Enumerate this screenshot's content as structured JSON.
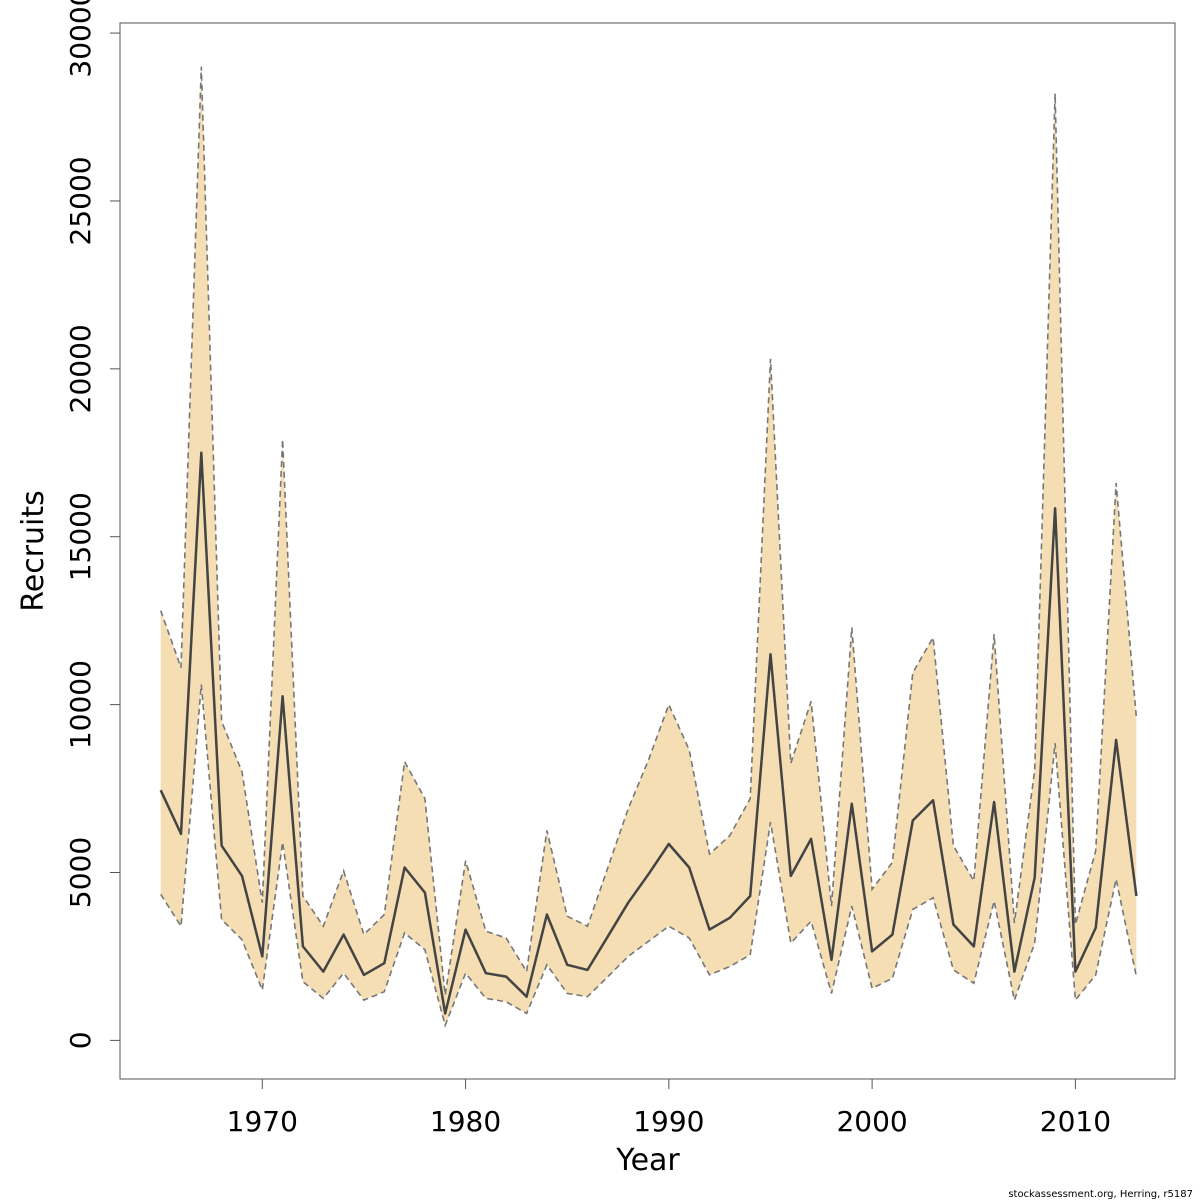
{
  "chart_data": {
    "type": "area",
    "xlabel": "Year",
    "ylabel": "Recruits",
    "xlim": [
      1963.0,
      2014.9
    ],
    "ylim": [
      -1150,
      30300
    ],
    "x_ticks": [
      1970,
      1980,
      1990,
      2000,
      2010
    ],
    "y_ticks": [
      0,
      5000,
      10000,
      15000,
      20000,
      25000,
      30000
    ],
    "grid": false,
    "legend": "none",
    "credit": "stockassessment.org, Herring, r5187",
    "colors": {
      "band": "#f5deb3",
      "estimate": "#444444",
      "bounds": "#777777"
    },
    "x": [
      1965,
      1966,
      1967,
      1968,
      1969,
      1970,
      1971,
      1972,
      1973,
      1974,
      1975,
      1976,
      1977,
      1978,
      1979,
      1980,
      1981,
      1982,
      1983,
      1984,
      1985,
      1986,
      1987,
      1988,
      1989,
      1990,
      1991,
      1992,
      1993,
      1994,
      1995,
      1996,
      1997,
      1998,
      1999,
      2000,
      2001,
      2002,
      2003,
      2004,
      2005,
      2006,
      2007,
      2008,
      2009,
      2010,
      2011,
      2012,
      2013
    ],
    "series": [
      {
        "role": "estimate",
        "values": [
          7450,
          6150,
          17500,
          5800,
          4900,
          2500,
          10250,
          2800,
          2050,
          3150,
          1950,
          2300,
          5150,
          4400,
          800,
          3300,
          2000,
          1900,
          1300,
          3750,
          2250,
          2100,
          3100,
          4100,
          4950,
          5850,
          5150,
          3300,
          3650,
          4300,
          11500,
          4900,
          6000,
          2400,
          7050,
          2650,
          3150,
          6550,
          7150,
          3450,
          2800,
          7100,
          2050,
          4850,
          15850,
          2050,
          3350,
          8950,
          4300
        ]
      },
      {
        "role": "upper",
        "values": [
          12800,
          11100,
          29000,
          9500,
          8000,
          4100,
          17900,
          4300,
          3400,
          5050,
          3150,
          3750,
          8300,
          7200,
          1350,
          5350,
          3250,
          3050,
          2050,
          6250,
          3700,
          3400,
          5150,
          6900,
          8350,
          10000,
          8650,
          5550,
          6100,
          7200,
          20300,
          8250,
          10100,
          4000,
          12300,
          4500,
          5300,
          10950,
          12000,
          5800,
          4750,
          12100,
          3500,
          8050,
          28200,
          3450,
          5650,
          16600,
          9600
        ]
      },
      {
        "role": "lower",
        "values": [
          4350,
          3400,
          10600,
          3600,
          3000,
          1500,
          5900,
          1750,
          1250,
          2000,
          1200,
          1450,
          3200,
          2700,
          450,
          2000,
          1250,
          1150,
          800,
          2250,
          1400,
          1300,
          1900,
          2500,
          2950,
          3400,
          3050,
          1950,
          2200,
          2550,
          6500,
          2900,
          3550,
          1400,
          4000,
          1550,
          1850,
          3900,
          4250,
          2100,
          1700,
          4150,
          1200,
          2900,
          8850,
          1200,
          1950,
          4800,
          1900
        ]
      }
    ]
  }
}
